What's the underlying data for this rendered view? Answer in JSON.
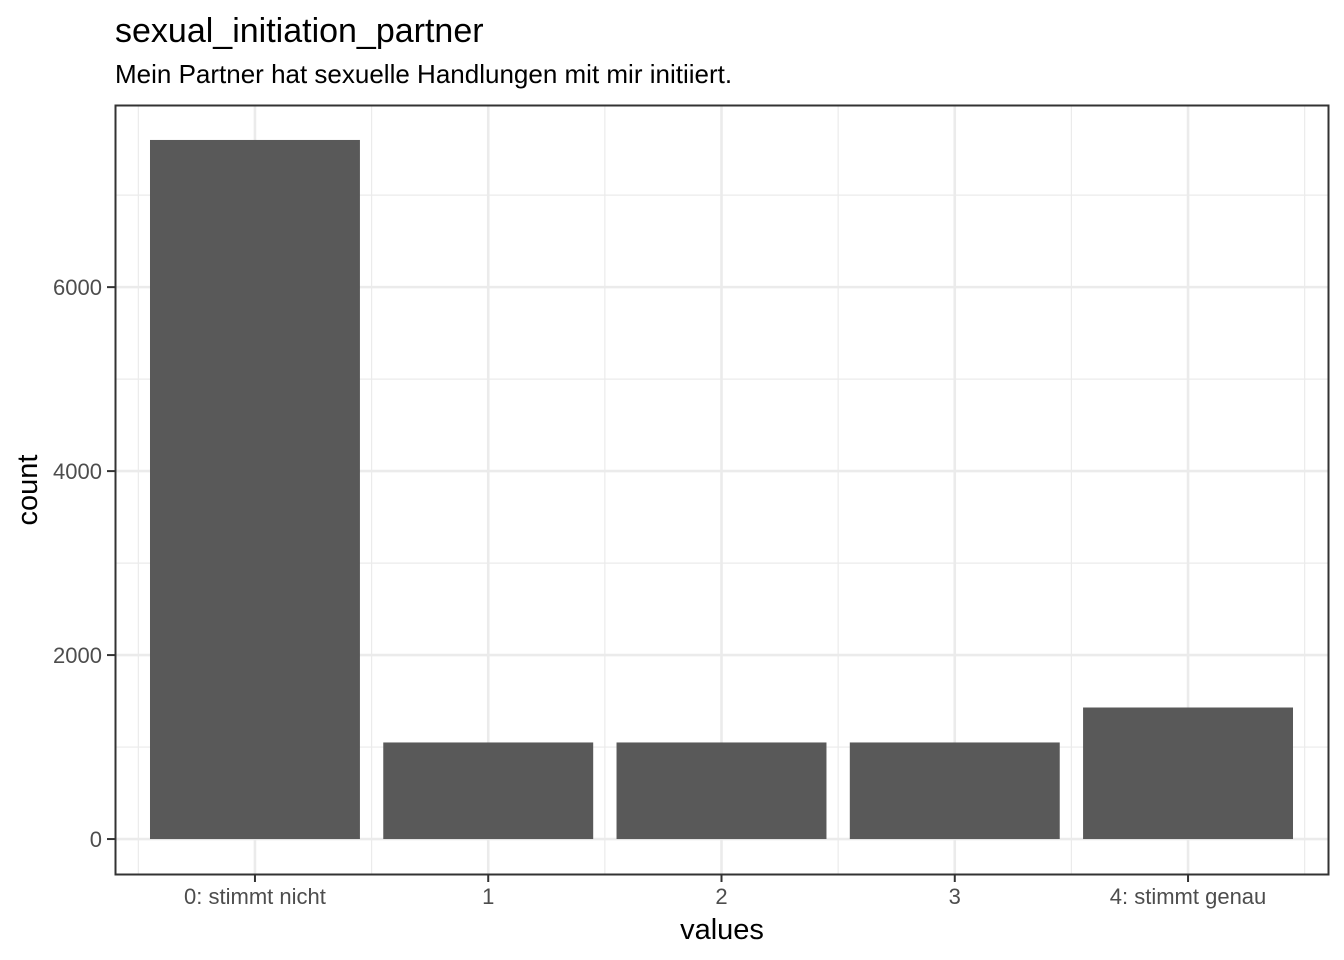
{
  "chart_data": {
    "type": "bar",
    "title": "sexual_initiation_partner",
    "subtitle": "Mein Partner hat sexuelle Handlungen mit mir initiiert.",
    "xlabel": "values",
    "ylabel": "count",
    "categories": [
      "0: stimmt nicht",
      "1",
      "2",
      "3",
      "4: stimmt genau"
    ],
    "values": [
      7600,
      1050,
      1050,
      1050,
      1430
    ],
    "yticks": [
      0,
      2000,
      4000,
      6000
    ],
    "ytick_labels": [
      "0",
      "2000",
      "4000",
      "6000"
    ],
    "ylim": [
      -380,
      7980
    ],
    "grid": true,
    "bar_color": "#595959",
    "grid_color": "#ebebeb",
    "panel_border_color": "#333333"
  }
}
